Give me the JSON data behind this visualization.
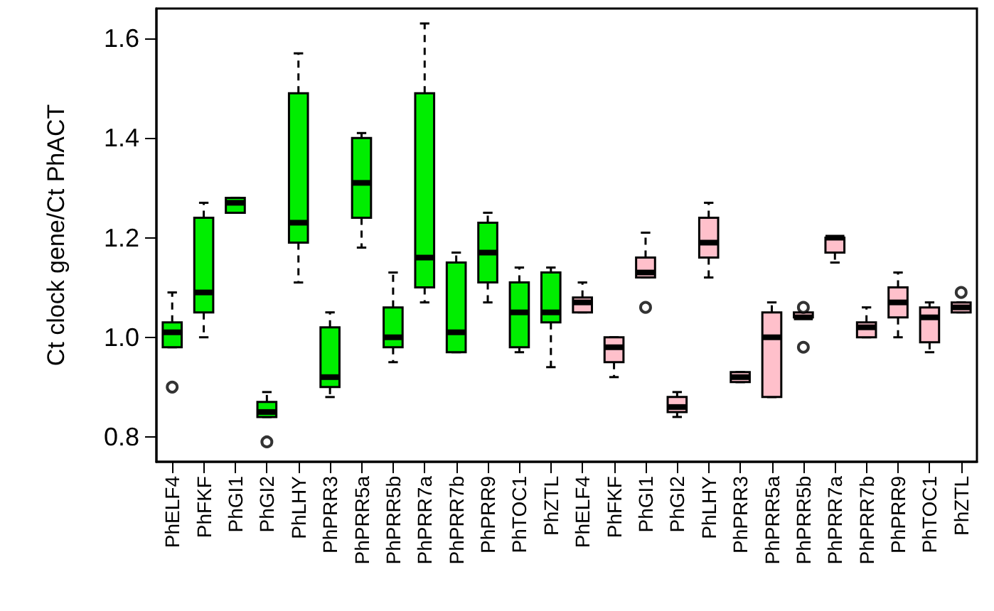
{
  "chart_data": {
    "type": "box",
    "ylabel": "Ct clock gene/Ct PhACT",
    "categories": [
      "PhELF4",
      "PhFKF",
      "PhGI1",
      "PhGI2",
      "PhLHY",
      "PhPRR3",
      "PhPRR5a",
      "PhPRR5b",
      "PhPRR7a",
      "PhPRR7b",
      "PhPRR9",
      "PhTOC1",
      "PhZTL",
      "PhELF4",
      "PhFKF",
      "PhGI1",
      "PhGI2",
      "PhLHY",
      "PhPRR3",
      "PhPRR5a",
      "PhPRR5b",
      "PhPRR7a",
      "PhPRR7b",
      "PhPRR9",
      "PhTOC1",
      "PhZTL"
    ],
    "colors": [
      "#00ee00",
      "#00ee00",
      "#00ee00",
      "#00ee00",
      "#00ee00",
      "#00ee00",
      "#00ee00",
      "#00ee00",
      "#00ee00",
      "#00ee00",
      "#00ee00",
      "#00ee00",
      "#00ee00",
      "#ffc0cb",
      "#ffc0cb",
      "#ffc0cb",
      "#ffc0cb",
      "#ffc0cb",
      "#ffc0cb",
      "#ffc0cb",
      "#ffc0cb",
      "#ffc0cb",
      "#ffc0cb",
      "#ffc0cb",
      "#ffc0cb",
      "#ffc0cb"
    ],
    "boxes": [
      {
        "low": 0.98,
        "q1": 0.98,
        "median": 1.01,
        "q3": 1.03,
        "high": 1.09,
        "outliers": [
          0.9
        ]
      },
      {
        "low": 1.0,
        "q1": 1.05,
        "median": 1.09,
        "q3": 1.24,
        "high": 1.27
      },
      {
        "low": 1.25,
        "q1": 1.25,
        "median": 1.27,
        "q3": 1.28,
        "high": 1.28
      },
      {
        "low": 0.84,
        "q1": 0.84,
        "median": 0.85,
        "q3": 0.87,
        "high": 0.89,
        "outliers": [
          0.79
        ]
      },
      {
        "low": 1.11,
        "q1": 1.19,
        "median": 1.23,
        "q3": 1.49,
        "high": 1.57
      },
      {
        "low": 0.88,
        "q1": 0.9,
        "median": 0.92,
        "q3": 1.02,
        "high": 1.05
      },
      {
        "low": 1.18,
        "q1": 1.24,
        "median": 1.31,
        "q3": 1.4,
        "high": 1.41
      },
      {
        "low": 0.95,
        "q1": 0.98,
        "median": 1.0,
        "q3": 1.06,
        "high": 1.13
      },
      {
        "low": 1.07,
        "q1": 1.1,
        "median": 1.16,
        "q3": 1.49,
        "high": 1.63
      },
      {
        "low": 0.97,
        "q1": 0.97,
        "median": 1.01,
        "q3": 1.15,
        "high": 1.17
      },
      {
        "low": 1.07,
        "q1": 1.11,
        "median": 1.17,
        "q3": 1.23,
        "high": 1.25
      },
      {
        "low": 0.97,
        "q1": 0.98,
        "median": 1.05,
        "q3": 1.11,
        "high": 1.14
      },
      {
        "low": 0.94,
        "q1": 1.03,
        "median": 1.05,
        "q3": 1.13,
        "high": 1.14
      },
      {
        "low": 1.05,
        "q1": 1.05,
        "median": 1.07,
        "q3": 1.08,
        "high": 1.11
      },
      {
        "low": 0.92,
        "q1": 0.95,
        "median": 0.98,
        "q3": 1.0,
        "high": 1.0
      },
      {
        "low": 1.12,
        "q1": 1.12,
        "median": 1.13,
        "q3": 1.16,
        "high": 1.21,
        "outliers": [
          1.06
        ]
      },
      {
        "low": 0.84,
        "q1": 0.85,
        "median": 0.86,
        "q3": 0.88,
        "high": 0.89
      },
      {
        "low": 1.12,
        "q1": 1.16,
        "median": 1.19,
        "q3": 1.24,
        "high": 1.27
      },
      {
        "low": 0.91,
        "q1": 0.91,
        "median": 0.92,
        "q3": 0.93,
        "high": 0.93
      },
      {
        "low": 0.88,
        "q1": 0.88,
        "median": 1.0,
        "q3": 1.05,
        "high": 1.07
      },
      {
        "low": 1.04,
        "q1": 1.04,
        "median": 1.04,
        "q3": 1.05,
        "high": 1.05,
        "outliers": [
          1.06,
          0.98
        ]
      },
      {
        "low": 1.15,
        "q1": 1.17,
        "median": 1.2,
        "q3": 1.2,
        "high": 1.2
      },
      {
        "low": 1.0,
        "q1": 1.0,
        "median": 1.02,
        "q3": 1.03,
        "high": 1.06
      },
      {
        "low": 1.0,
        "q1": 1.04,
        "median": 1.07,
        "q3": 1.1,
        "high": 1.13
      },
      {
        "low": 0.97,
        "q1": 0.99,
        "median": 1.04,
        "q3": 1.06,
        "high": 1.07
      },
      {
        "low": 1.05,
        "q1": 1.05,
        "median": 1.06,
        "q3": 1.07,
        "high": 1.07,
        "outliers": [
          1.09
        ]
      }
    ],
    "ylim": [
      0.75,
      1.66
    ],
    "yticks": [
      0.8,
      {
        "value": 1,
        "label": "1.0"
      },
      1.2,
      1.4,
      1.6
    ]
  }
}
